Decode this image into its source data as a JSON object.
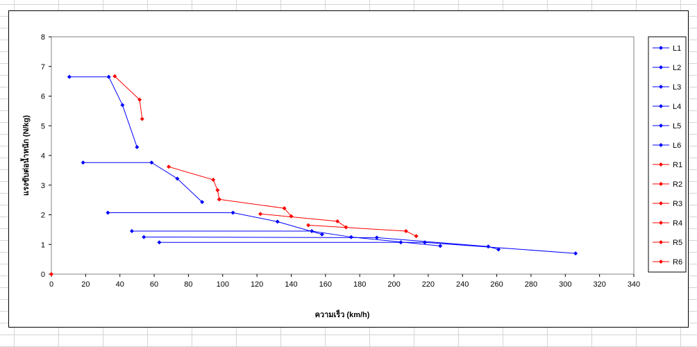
{
  "chart_data": {
    "type": "line",
    "title": "",
    "xlabel": "ความเร็ว (km/h)",
    "ylabel": "แรงขับต่อน้ำหนัก (N/kg)",
    "xlim": [
      0,
      340
    ],
    "ylim": [
      0,
      8
    ],
    "x_ticks": [
      "0",
      "20",
      "40",
      "60",
      "80",
      "100",
      "120",
      "140",
      "160",
      "180",
      "200",
      "220",
      "240",
      "260",
      "280",
      "300",
      "320",
      "340"
    ],
    "y_ticks": [
      "0",
      "1",
      "2",
      "3",
      "4",
      "5",
      "6",
      "7",
      "8"
    ],
    "grid": false,
    "legend_position": "right",
    "colors": {
      "L": "#0000ff",
      "R": "#ff0000"
    },
    "series": [
      {
        "name": "L1",
        "color": "#0000ff",
        "points": [
          [
            10.5,
            6.65
          ],
          [
            33.5,
            6.65
          ],
          [
            41.5,
            5.7
          ],
          [
            50,
            4.28
          ]
        ]
      },
      {
        "name": "L2",
        "color": "#0000ff",
        "points": [
          [
            18.5,
            3.76
          ],
          [
            58.5,
            3.76
          ],
          [
            73.5,
            3.22
          ],
          [
            88,
            2.43
          ]
        ]
      },
      {
        "name": "L3",
        "color": "#0000ff",
        "points": [
          [
            33,
            2.07
          ],
          [
            106,
            2.07
          ],
          [
            132,
            1.77
          ],
          [
            158,
            1.34
          ]
        ]
      },
      {
        "name": "L4",
        "color": "#0000ff",
        "points": [
          [
            47,
            1.45
          ],
          [
            152,
            1.45
          ],
          [
            175,
            1.25
          ],
          [
            227,
            0.95
          ]
        ]
      },
      {
        "name": "L5",
        "color": "#0000ff",
        "points": [
          [
            54,
            1.25
          ],
          [
            190,
            1.23
          ],
          [
            255,
            0.93
          ],
          [
            261,
            0.83
          ]
        ]
      },
      {
        "name": "L6",
        "color": "#0000ff",
        "points": [
          [
            63,
            1.07
          ],
          [
            204,
            1.07
          ],
          [
            218,
            1.07
          ],
          [
            306,
            0.7
          ]
        ]
      },
      {
        "name": "R1",
        "color": "#ff0000",
        "points": [
          [
            37,
            6.67
          ],
          [
            51.5,
            5.88
          ],
          [
            53,
            5.23
          ]
        ]
      },
      {
        "name": "R2",
        "color": "#ff0000",
        "points": [
          [
            68.5,
            3.62
          ],
          [
            94.5,
            3.18
          ],
          [
            97,
            2.83
          ],
          [
            98,
            2.52
          ]
        ]
      },
      {
        "name": "R3",
        "color": "#ff0000",
        "points": [
          [
            98,
            2.52
          ],
          [
            136,
            2.22
          ],
          [
            140,
            1.95
          ]
        ]
      },
      {
        "name": "R4",
        "color": "#ff0000",
        "points": [
          [
            122,
            2.03
          ],
          [
            167,
            1.78
          ],
          [
            172,
            1.58
          ]
        ]
      },
      {
        "name": "R5",
        "color": "#ff0000",
        "points": [
          [
            150,
            1.65
          ],
          [
            207,
            1.45
          ],
          [
            213,
            1.28
          ]
        ]
      },
      {
        "name": "R6",
        "color": "#ff0000",
        "points": [
          [
            0,
            0
          ]
        ]
      }
    ]
  }
}
